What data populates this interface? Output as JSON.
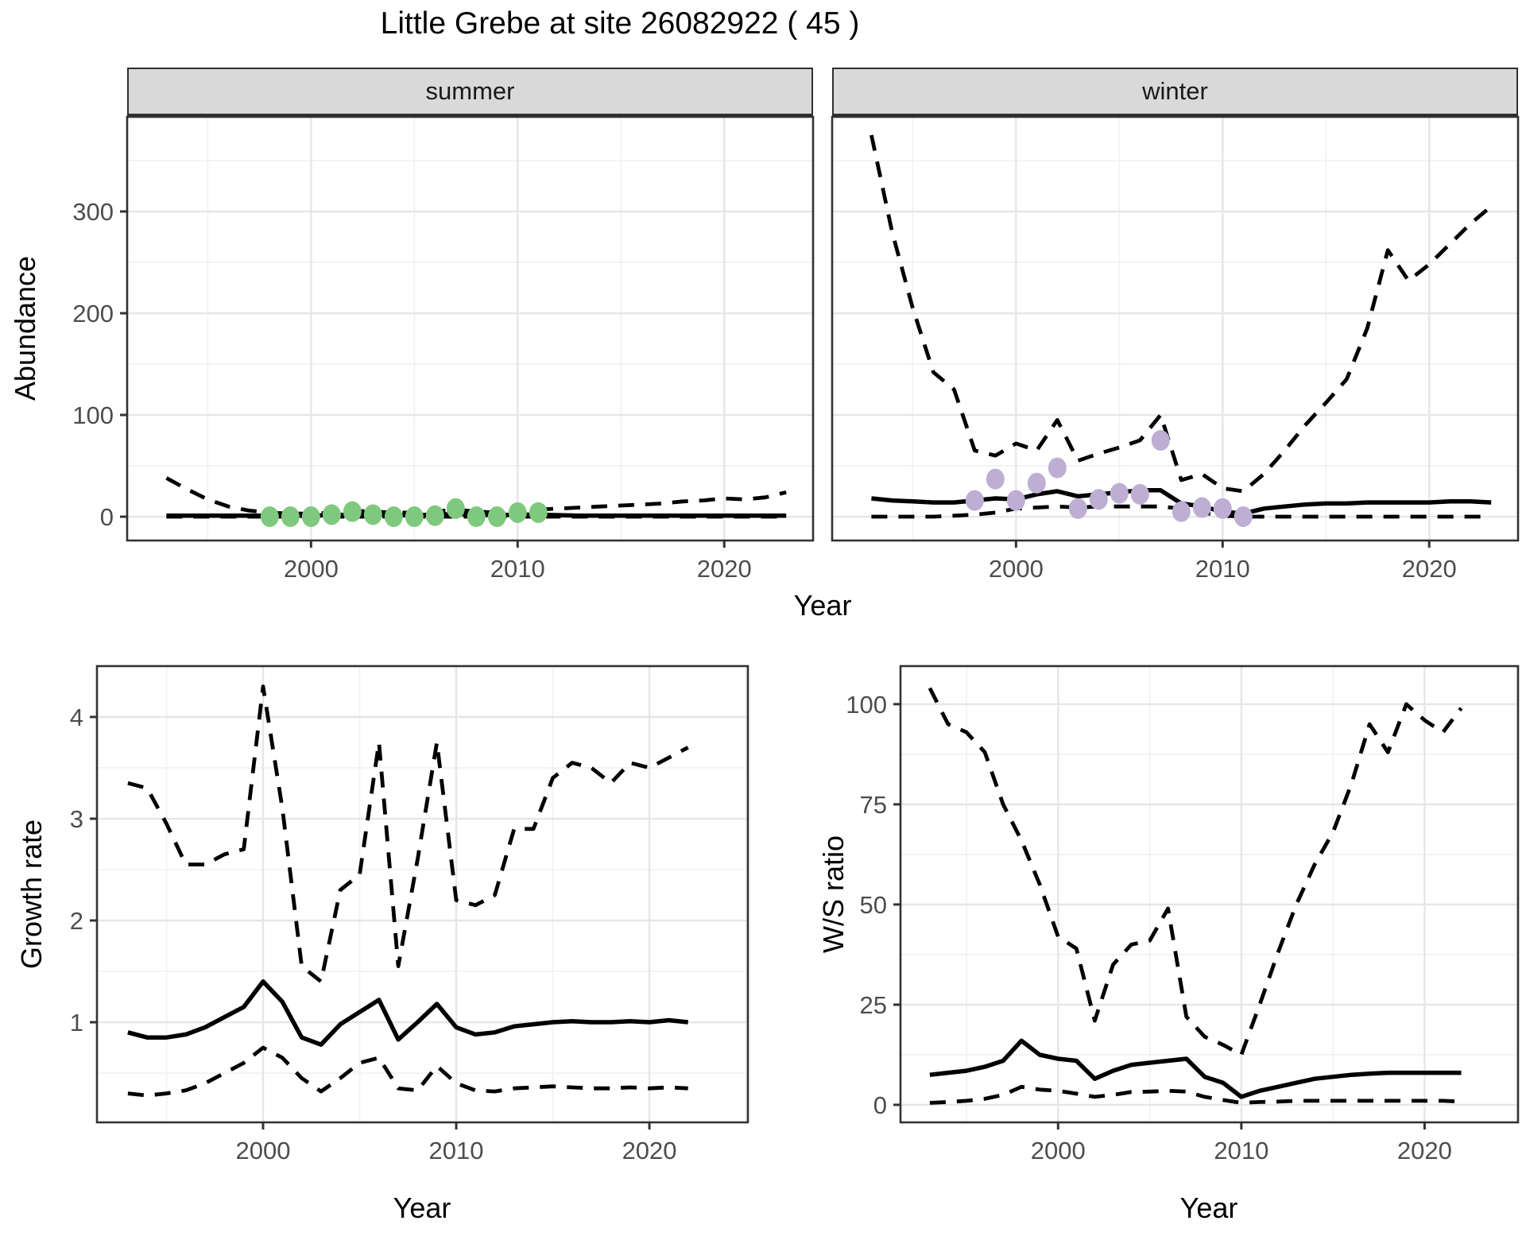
{
  "title": "Little Grebe at site 26082922 ( 45 )",
  "colors": {
    "line": "#000000",
    "point_summer": "#7FC97F",
    "point_winter": "#BEAED4",
    "strip_bg": "#D9D9D9",
    "panel_border": "#333333",
    "grid_major": "#E6E6E6",
    "grid_minor": "#F2F2F2",
    "tick_text": "#4D4D4D"
  },
  "chart_data": [
    {
      "id": "abundance_summer",
      "type": "line",
      "facet": "summer",
      "xlabel": "Year",
      "ylabel": "Abundance",
      "xlim": [
        1991.1,
        2024.3
      ],
      "ylim": [
        -23.4,
        393
      ],
      "x_ticks": [
        2000,
        2010,
        2020
      ],
      "y_ticks": [
        0,
        100,
        200,
        300
      ],
      "show_y_labels": true,
      "years": [
        1993,
        1994,
        1995,
        1996,
        1997,
        1998,
        1999,
        2000,
        2001,
        2002,
        2003,
        2004,
        2005,
        2006,
        2007,
        2008,
        2009,
        2010,
        2011,
        2012,
        2013,
        2014,
        2015,
        2016,
        2017,
        2018,
        2019,
        2020,
        2021,
        2022,
        2023
      ],
      "series": [
        {
          "name": "upper_95ci",
          "style": "dashed",
          "values": [
            38,
            27,
            17,
            10,
            6,
            4,
            3,
            3,
            4,
            6,
            5,
            4,
            4,
            5,
            7,
            5,
            4,
            5,
            7,
            8,
            9,
            10,
            11,
            12,
            13,
            15,
            16,
            18,
            17,
            19,
            24
          ]
        },
        {
          "name": "median",
          "style": "solid",
          "values": [
            1,
            1,
            1,
            1,
            1,
            1,
            1,
            1,
            1.5,
            2,
            2,
            1.5,
            1.5,
            2,
            2.5,
            2,
            1.5,
            2,
            2,
            1.5,
            1,
            1,
            1,
            1,
            1,
            1,
            1,
            1,
            1,
            1,
            1
          ]
        },
        {
          "name": "lower_95ci",
          "style": "dashed",
          "values": [
            0,
            0,
            0,
            0,
            0,
            0,
            0,
            0,
            0,
            0,
            0,
            0,
            0,
            0,
            0,
            0,
            0,
            0,
            0,
            0,
            0,
            0,
            0,
            0,
            0,
            0,
            0,
            0,
            0,
            0,
            0
          ]
        }
      ],
      "points": {
        "name": "observed_counts_summer",
        "color": "#7FC97F",
        "years": [
          1998,
          1999,
          2000,
          2001,
          2002,
          2003,
          2004,
          2005,
          2006,
          2007,
          2008,
          2009,
          2010,
          2011
        ],
        "values": [
          0,
          0,
          0,
          2,
          5,
          2,
          0,
          0,
          1,
          8,
          0,
          0,
          4,
          4
        ]
      }
    },
    {
      "id": "abundance_winter",
      "type": "line",
      "facet": "winter",
      "xlabel": "Year",
      "ylabel": "Abundance",
      "xlim": [
        1991.1,
        2024.3
      ],
      "ylim": [
        -23.4,
        393
      ],
      "x_ticks": [
        2000,
        2010,
        2020
      ],
      "y_ticks": [
        0,
        100,
        200,
        300
      ],
      "show_y_labels": false,
      "years": [
        1993,
        1994,
        1995,
        1996,
        1997,
        1998,
        1999,
        2000,
        2001,
        2002,
        2003,
        2004,
        2005,
        2006,
        2007,
        2008,
        2009,
        2010,
        2011,
        2012,
        2013,
        2014,
        2015,
        2016,
        2017,
        2018,
        2019,
        2020,
        2021,
        2022,
        2023
      ],
      "series": [
        {
          "name": "upper_95ci",
          "style": "dashed",
          "values": [
            375,
            280,
            205,
            142,
            125,
            65,
            60,
            72,
            65,
            95,
            55,
            62,
            68,
            75,
            100,
            36,
            42,
            28,
            25,
            42,
            65,
            90,
            112,
            135,
            185,
            262,
            232,
            248,
            268,
            288,
            305
          ]
        },
        {
          "name": "median",
          "style": "solid",
          "values": [
            18,
            16,
            15,
            14,
            14,
            16,
            18,
            17,
            22,
            25,
            20,
            22,
            24,
            26,
            26,
            13,
            10,
            5,
            3,
            8,
            10,
            12,
            13,
            13,
            14,
            14,
            14,
            14,
            15,
            15,
            14
          ]
        },
        {
          "name": "lower_95ci",
          "style": "dashed",
          "values": [
            0,
            0,
            0,
            0,
            1,
            2,
            4,
            8,
            9,
            10,
            9,
            10,
            10,
            10,
            10,
            8,
            4,
            1,
            0,
            0,
            0,
            0,
            0,
            0,
            0,
            0,
            0,
            0,
            0,
            0,
            0
          ]
        }
      ],
      "points": {
        "name": "observed_counts_winter",
        "color": "#BEAED4",
        "years": [
          1998,
          1999,
          2000,
          2001,
          2002,
          2003,
          2004,
          2005,
          2006,
          2007,
          2008,
          2009,
          2010,
          2011
        ],
        "values": [
          16,
          37,
          16,
          33,
          48,
          8,
          17,
          23,
          22,
          75,
          5,
          9,
          8,
          0
        ]
      }
    },
    {
      "id": "growth_rate",
      "type": "line",
      "facet": null,
      "xlabel": "Year",
      "ylabel": "Growth rate",
      "xlim": [
        1991.4,
        2025.1
      ],
      "ylim": [
        0.016,
        4.5
      ],
      "x_ticks": [
        2000,
        2010,
        2020
      ],
      "y_ticks": [
        1,
        2,
        3,
        4
      ],
      "show_y_labels": true,
      "years": [
        1993,
        1994,
        1995,
        1996,
        1997,
        1998,
        1999,
        2000,
        2001,
        2002,
        2003,
        2004,
        2005,
        2006,
        2007,
        2008,
        2009,
        2010,
        2011,
        2012,
        2013,
        2014,
        2015,
        2016,
        2017,
        2018,
        2019,
        2020,
        2021,
        2022
      ],
      "series": [
        {
          "name": "upper_95ci",
          "style": "dashed",
          "values": [
            3.35,
            3.3,
            2.95,
            2.55,
            2.55,
            2.65,
            2.7,
            4.3,
            3.1,
            1.55,
            1.4,
            2.3,
            2.45,
            3.75,
            1.55,
            2.6,
            3.75,
            2.2,
            2.15,
            2.25,
            2.9,
            2.9,
            3.4,
            3.55,
            3.5,
            3.35,
            3.55,
            3.5,
            3.6,
            3.7
          ]
        },
        {
          "name": "median",
          "style": "solid",
          "values": [
            0.9,
            0.85,
            0.85,
            0.88,
            0.95,
            1.05,
            1.15,
            1.4,
            1.2,
            0.85,
            0.78,
            0.98,
            1.1,
            1.22,
            0.83,
            1.0,
            1.18,
            0.95,
            0.88,
            0.9,
            0.96,
            0.98,
            1.0,
            1.01,
            1.0,
            1.0,
            1.01,
            1.0,
            1.02,
            1.0
          ]
        },
        {
          "name": "lower_95ci",
          "style": "dashed",
          "values": [
            0.3,
            0.28,
            0.3,
            0.33,
            0.4,
            0.5,
            0.6,
            0.75,
            0.65,
            0.45,
            0.32,
            0.45,
            0.6,
            0.65,
            0.35,
            0.33,
            0.57,
            0.4,
            0.33,
            0.32,
            0.35,
            0.36,
            0.37,
            0.36,
            0.35,
            0.35,
            0.36,
            0.35,
            0.36,
            0.35
          ]
        }
      ],
      "points": null
    },
    {
      "id": "ws_ratio",
      "type": "line",
      "facet": null,
      "xlabel": "Year",
      "ylabel": "W/S ratio",
      "xlim": [
        1991.4,
        2025.1
      ],
      "ylim": [
        -4.37,
        109.5
      ],
      "x_ticks": [
        2000,
        2010,
        2020
      ],
      "y_ticks": [
        0,
        25,
        50,
        75,
        100
      ],
      "show_y_labels": true,
      "years": [
        1993,
        1994,
        1995,
        1996,
        1997,
        1998,
        1999,
        2000,
        2001,
        2002,
        2003,
        2004,
        2005,
        2006,
        2007,
        2008,
        2009,
        2010,
        2011,
        2012,
        2013,
        2014,
        2015,
        2016,
        2017,
        2018,
        2019,
        2020,
        2021,
        2022
      ],
      "series": [
        {
          "name": "upper_95ci",
          "style": "dashed",
          "values": [
            104,
            95,
            93,
            88,
            75,
            66,
            55,
            42,
            39,
            21,
            35,
            40,
            41,
            49,
            22,
            17,
            15,
            12.5,
            25,
            38,
            50,
            60,
            68,
            80,
            95,
            88,
            100,
            96,
            93,
            99
          ]
        },
        {
          "name": "median",
          "style": "solid",
          "values": [
            7.5,
            8,
            8.5,
            9.5,
            11,
            16,
            12.5,
            11.5,
            11,
            6.5,
            8.5,
            10,
            10.5,
            11,
            11.5,
            7,
            5.5,
            2,
            3.5,
            4.5,
            5.5,
            6.5,
            7,
            7.5,
            7.8,
            8,
            8,
            8,
            8,
            8
          ]
        },
        {
          "name": "lower_95ci",
          "style": "dashed",
          "values": [
            0.5,
            0.7,
            1,
            1.5,
            2.5,
            4.5,
            3.8,
            3.5,
            2.8,
            2,
            2.5,
            3.2,
            3.3,
            3.5,
            3.3,
            2,
            1.2,
            0.5,
            0.7,
            0.8,
            1,
            1,
            1,
            1,
            1,
            1,
            1,
            1,
            1,
            0.8
          ]
        }
      ],
      "points": null
    }
  ]
}
